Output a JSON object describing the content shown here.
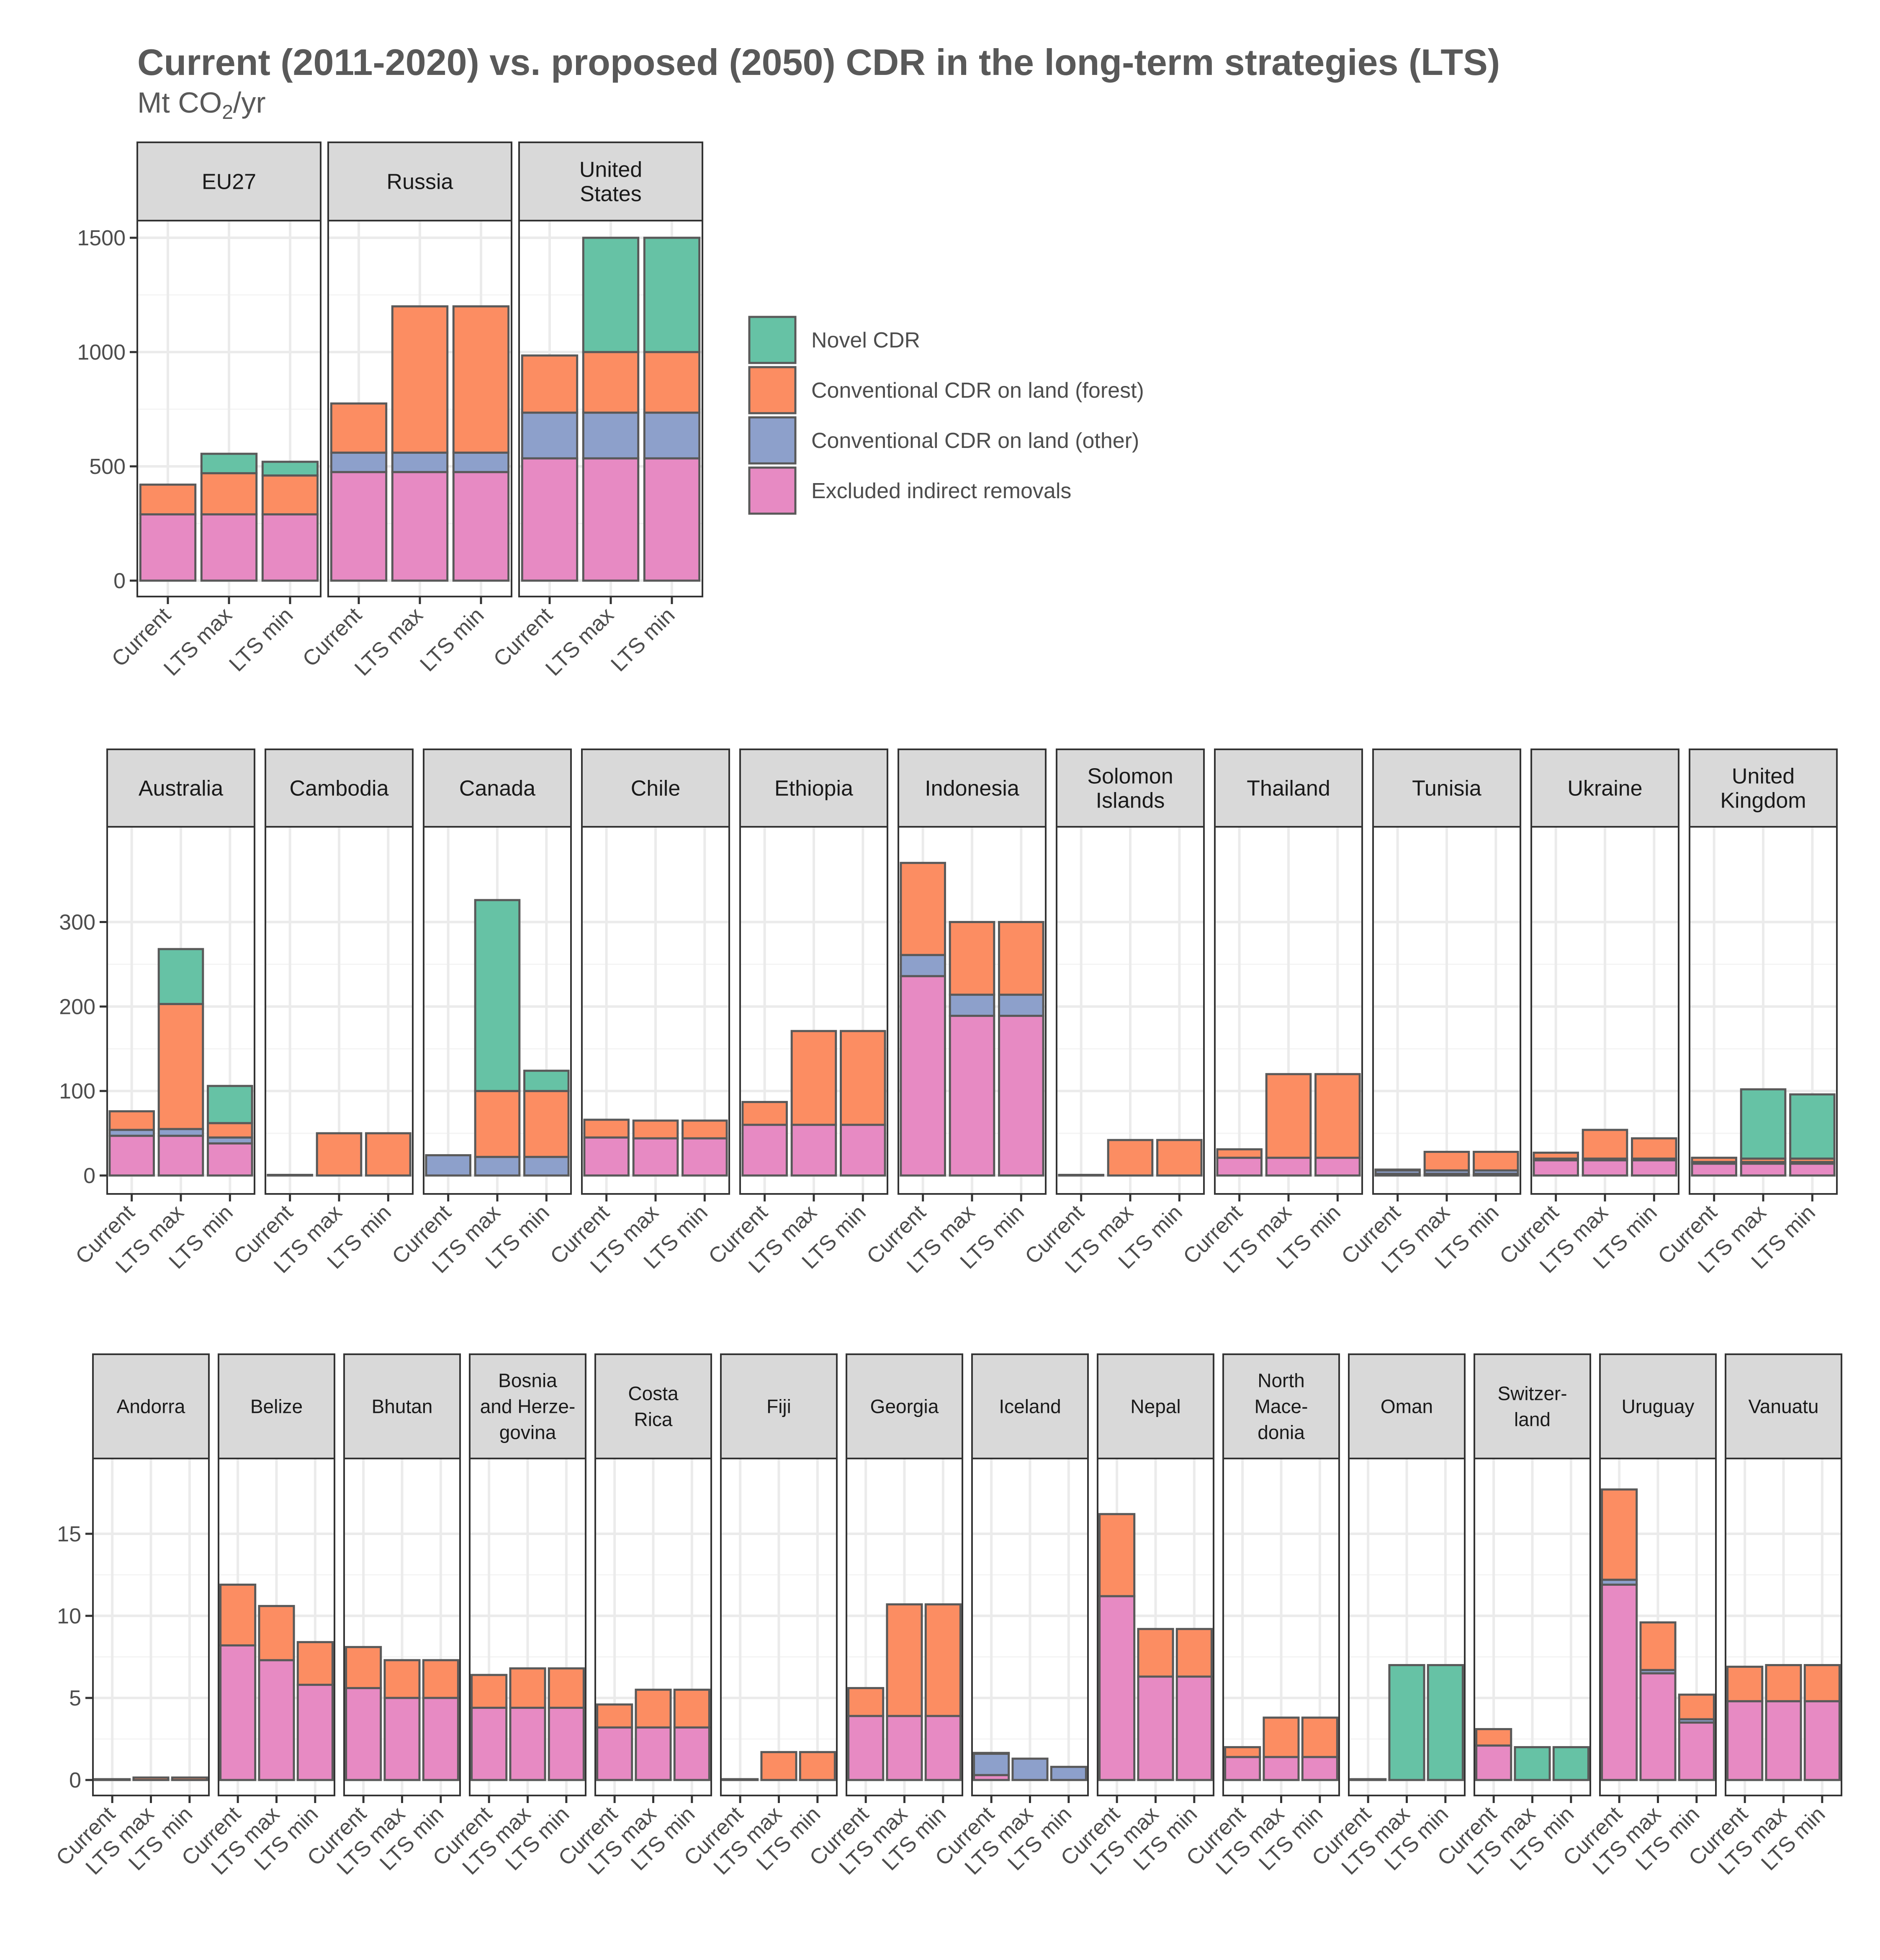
{
  "chart_data": {
    "type": "bar",
    "stacked": true,
    "title": "Current (2011-2020) vs. proposed (2050) CDR in the long-term strategies (LTS)",
    "subtitle": {
      "prefix": "Mt CO",
      "sub": "2",
      "suffix": "/yr"
    },
    "categories": [
      "Current",
      "LTS max",
      "LTS min"
    ],
    "stack_order": [
      "Excluded indirect removals",
      "Conventional CDR on land (other)",
      "Conventional CDR on land (forest)",
      "Novel CDR"
    ],
    "legend": {
      "position": "right",
      "entries": [
        "Novel CDR",
        "Conventional CDR on land (forest)",
        "Conventional CDR on land (other)",
        "Excluded indirect removals"
      ]
    },
    "colors": {
      "Novel CDR": "#66c2a5",
      "Conventional CDR on land (forest)": "#fc8d62",
      "Conventional CDR on land (other)": "#8da0cb",
      "Excluded indirect removals": "#e78ac3"
    },
    "grid": true,
    "rows": [
      {
        "ylim": [
          0,
          1500
        ],
        "yticks": [
          0,
          500,
          1000,
          1500
        ],
        "panels": [
          {
            "label": [
              "EU27"
            ],
            "bars": [
              [
                290,
                0,
                130,
                0
              ],
              [
                290,
                0,
                180,
                85
              ],
              [
                290,
                0,
                170,
                60
              ]
            ]
          },
          {
            "label": [
              "Russia"
            ],
            "bars": [
              [
                475,
                85,
                215,
                0
              ],
              [
                475,
                85,
                640,
                0
              ],
              [
                475,
                85,
                640,
                0
              ]
            ]
          },
          {
            "label": [
              "United",
              "States"
            ],
            "bars": [
              [
                535,
                200,
                250,
                0
              ],
              [
                535,
                200,
                265,
                500
              ],
              [
                535,
                200,
                265,
                500
              ]
            ]
          }
        ]
      },
      {
        "ylim": [
          0,
          330
        ],
        "yticks": [
          0,
          100,
          200,
          300
        ],
        "panels": [
          {
            "label": [
              "Australia"
            ],
            "bars": [
              [
                47,
                7,
                22,
                0
              ],
              [
                47,
                8,
                148,
                65
              ],
              [
                38,
                7,
                17,
                44
              ]
            ]
          },
          {
            "label": [
              "Cambodia"
            ],
            "bars": [
              [
                0,
                0,
                0.5,
                0
              ],
              [
                0,
                0,
                50,
                0
              ],
              [
                0,
                0,
                50,
                0
              ]
            ]
          },
          {
            "label": [
              "Canada"
            ],
            "bars": [
              [
                0,
                24,
                0,
                0
              ],
              [
                0,
                22,
                78,
                226
              ],
              [
                0,
                22,
                78,
                24
              ]
            ]
          },
          {
            "label": [
              "Chile"
            ],
            "bars": [
              [
                45,
                0,
                21,
                0
              ],
              [
                44,
                0,
                21,
                0
              ],
              [
                44,
                0,
                21,
                0
              ]
            ]
          },
          {
            "label": [
              "Ethiopia"
            ],
            "bars": [
              [
                60,
                0,
                27,
                0
              ],
              [
                60,
                0,
                111,
                0
              ],
              [
                60,
                0,
                111,
                0
              ]
            ]
          },
          {
            "label": [
              "Indonesia"
            ],
            "bars": [
              [
                236,
                25,
                109,
                0
              ],
              [
                189,
                25,
                86,
                0
              ],
              [
                189,
                25,
                86,
                0
              ]
            ]
          },
          {
            "label": [
              "Solomon",
              "Islands"
            ],
            "bars": [
              [
                0,
                0,
                0.5,
                0
              ],
              [
                0,
                0,
                42,
                0
              ],
              [
                0,
                0,
                42,
                0
              ]
            ]
          },
          {
            "label": [
              "Thailand"
            ],
            "bars": [
              [
                21,
                0,
                10,
                0
              ],
              [
                21,
                0,
                99,
                0
              ],
              [
                21,
                0,
                99,
                0
              ]
            ]
          },
          {
            "label": [
              "Tunisia"
            ],
            "bars": [
              [
                2,
                4,
                1,
                0
              ],
              [
                2,
                4,
                22,
                0
              ],
              [
                2,
                4,
                22,
                0
              ]
            ]
          },
          {
            "label": [
              "Ukraine"
            ],
            "bars": [
              [
                18,
                2,
                7,
                0
              ],
              [
                18,
                2,
                34,
                0
              ],
              [
                18,
                2,
                24,
                0
              ]
            ]
          },
          {
            "label": [
              "United",
              "Kingdom"
            ],
            "bars": [
              [
                14,
                2,
                5,
                0
              ],
              [
                14,
                2,
                4,
                82
              ],
              [
                14,
                2,
                4,
                76
              ]
            ]
          }
        ]
      },
      {
        "ylim": [
          0,
          17.7
        ],
        "yticks": [
          0,
          5,
          10,
          15
        ],
        "panels": [
          {
            "label": [
              "Andorra"
            ],
            "bars": [
              [
                0,
                0,
                0.05,
                0
              ],
              [
                0,
                0,
                0.15,
                0
              ],
              [
                0,
                0,
                0.15,
                0
              ]
            ]
          },
          {
            "label": [
              "Belize"
            ],
            "bars": [
              [
                8.2,
                0,
                3.7,
                0
              ],
              [
                7.3,
                0,
                3.3,
                0
              ],
              [
                5.8,
                0,
                2.6,
                0
              ]
            ]
          },
          {
            "label": [
              "Bhutan"
            ],
            "bars": [
              [
                5.6,
                0,
                2.5,
                0
              ],
              [
                5.0,
                0,
                2.3,
                0
              ],
              [
                5.0,
                0,
                2.3,
                0
              ]
            ]
          },
          {
            "label": [
              "Bosnia",
              "and Herze-",
              "govina"
            ],
            "bars": [
              [
                4.4,
                0,
                2.0,
                0
              ],
              [
                4.4,
                0,
                2.4,
                0
              ],
              [
                4.4,
                0,
                2.4,
                0
              ]
            ]
          },
          {
            "label": [
              "Costa",
              "Rica"
            ],
            "bars": [
              [
                3.2,
                0,
                1.4,
                0
              ],
              [
                3.2,
                0,
                2.3,
                0
              ],
              [
                3.2,
                0,
                2.3,
                0
              ]
            ]
          },
          {
            "label": [
              "Fiji"
            ],
            "bars": [
              [
                0,
                0,
                0.05,
                0
              ],
              [
                0,
                0,
                1.7,
                0
              ],
              [
                0,
                0,
                1.7,
                0
              ]
            ]
          },
          {
            "label": [
              "Georgia"
            ],
            "bars": [
              [
                3.9,
                0,
                1.7,
                0
              ],
              [
                3.9,
                0,
                6.8,
                0
              ],
              [
                3.9,
                0,
                6.8,
                0
              ]
            ]
          },
          {
            "label": [
              "Iceland"
            ],
            "bars": [
              [
                0.3,
                1.3,
                0.05,
                0
              ],
              [
                0,
                1.3,
                0,
                0
              ],
              [
                0,
                0.8,
                0,
                0
              ]
            ]
          },
          {
            "label": [
              "Nepal"
            ],
            "bars": [
              [
                11.2,
                0,
                5.0,
                0
              ],
              [
                6.3,
                0,
                2.9,
                0
              ],
              [
                6.3,
                0,
                2.9,
                0
              ]
            ]
          },
          {
            "label": [
              "North",
              "Mace-",
              "donia"
            ],
            "bars": [
              [
                1.4,
                0,
                0.6,
                0
              ],
              [
                1.4,
                0,
                2.4,
                0
              ],
              [
                1.4,
                0,
                2.4,
                0
              ]
            ]
          },
          {
            "label": [
              "Oman"
            ],
            "bars": [
              [
                0,
                0,
                0.05,
                0
              ],
              [
                0,
                0,
                0,
                7.0
              ],
              [
                0,
                0,
                0,
                7.0
              ]
            ]
          },
          {
            "label": [
              "Switzer-",
              "land"
            ],
            "bars": [
              [
                2.1,
                0,
                1.0,
                0
              ],
              [
                0,
                0,
                0,
                2.0
              ],
              [
                0,
                0,
                0,
                2.0
              ]
            ]
          },
          {
            "label": [
              "Uruguay"
            ],
            "bars": [
              [
                11.9,
                0.3,
                5.5,
                0
              ],
              [
                6.5,
                0.2,
                2.9,
                0
              ],
              [
                3.5,
                0.2,
                1.5,
                0
              ]
            ]
          },
          {
            "label": [
              "Vanuatu"
            ],
            "bars": [
              [
                4.8,
                0,
                2.1,
                0
              ],
              [
                4.8,
                0,
                2.2,
                0
              ],
              [
                4.8,
                0,
                2.2,
                0
              ]
            ]
          }
        ]
      }
    ]
  }
}
